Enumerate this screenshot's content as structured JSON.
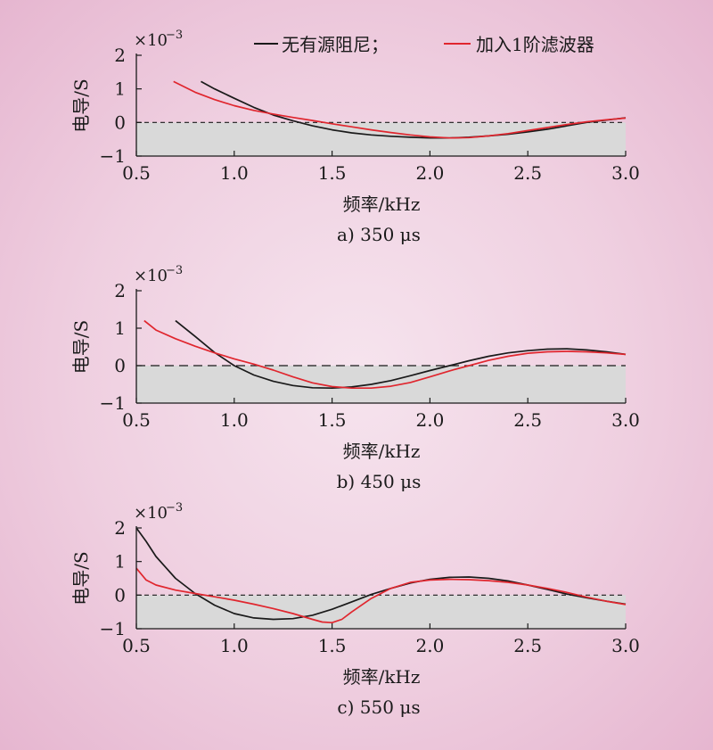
{
  "legend": {
    "label_a": "无有源阻尼；",
    "label_b": "加入1阶滤波器",
    "color_a": "#1a1a1a",
    "color_b": "#e0262e"
  },
  "chart_data": [
    {
      "type": "line",
      "caption": "a) 350 μs",
      "xlabel": "频率/kHz",
      "ylabel": "电导/S",
      "y_multiplier": "×10",
      "y_exponent": "−3",
      "xlim": [
        0.5,
        3.0
      ],
      "ylim": [
        -1,
        2
      ],
      "x_ticks": [
        "0.5",
        "1.0",
        "1.5",
        "2.0",
        "2.5",
        "3.0"
      ],
      "y_ticks": [
        "2",
        "1",
        "0",
        "−1"
      ],
      "shaded_negative_region": true,
      "zero_line": "dashed",
      "series": [
        {
          "name": "无有源阻尼；",
          "color": "#1a1a1a",
          "x": [
            0.83,
            0.9,
            1.0,
            1.1,
            1.2,
            1.3,
            1.4,
            1.5,
            1.6,
            1.7,
            1.8,
            1.9,
            2.0,
            2.1,
            2.2,
            2.3,
            2.4,
            2.5,
            2.6,
            2.7,
            2.8,
            2.9,
            3.0
          ],
          "y": [
            1.22,
            1.0,
            0.72,
            0.45,
            0.22,
            0.05,
            -0.1,
            -0.22,
            -0.31,
            -0.37,
            -0.41,
            -0.44,
            -0.46,
            -0.46,
            -0.44,
            -0.4,
            -0.35,
            -0.28,
            -0.2,
            -0.1,
            0.0,
            0.07,
            0.14
          ]
        },
        {
          "name": "加入1阶滤波器",
          "color": "#e0262e",
          "x": [
            0.69,
            0.8,
            0.9,
            1.0,
            1.1,
            1.2,
            1.3,
            1.4,
            1.5,
            1.6,
            1.7,
            1.8,
            1.9,
            2.0,
            2.1,
            2.2,
            2.3,
            2.4,
            2.5,
            2.6,
            2.7,
            2.8,
            2.9,
            3.0
          ],
          "y": [
            1.22,
            0.9,
            0.68,
            0.5,
            0.36,
            0.25,
            0.15,
            0.06,
            -0.04,
            -0.13,
            -0.22,
            -0.3,
            -0.37,
            -0.43,
            -0.46,
            -0.45,
            -0.4,
            -0.33,
            -0.24,
            -0.15,
            -0.06,
            0.02,
            0.08,
            0.13
          ]
        }
      ]
    },
    {
      "type": "line",
      "caption": "b) 450 μs",
      "xlabel": "频率/kHz",
      "ylabel": "电导/S",
      "y_multiplier": "×10",
      "y_exponent": "−3",
      "xlim": [
        0.5,
        3.0
      ],
      "ylim": [
        -1,
        2
      ],
      "x_ticks": [
        "0.5",
        "1.0",
        "1.5",
        "2.0",
        "2.5",
        "3.0"
      ],
      "y_ticks": [
        "2",
        "1",
        "0",
        "−1"
      ],
      "shaded_negative_region": true,
      "zero_line": "dashed",
      "series": [
        {
          "name": "无有源阻尼；",
          "color": "#1a1a1a",
          "x": [
            0.7,
            0.8,
            0.9,
            1.0,
            1.1,
            1.2,
            1.3,
            1.4,
            1.5,
            1.6,
            1.7,
            1.8,
            1.9,
            2.0,
            2.1,
            2.2,
            2.3,
            2.4,
            2.5,
            2.6,
            2.7,
            2.8,
            2.9,
            3.0
          ],
          "y": [
            1.2,
            0.78,
            0.35,
            0.0,
            -0.25,
            -0.42,
            -0.53,
            -0.59,
            -0.6,
            -0.57,
            -0.5,
            -0.4,
            -0.27,
            -0.13,
            0.0,
            0.13,
            0.25,
            0.34,
            0.4,
            0.44,
            0.45,
            0.42,
            0.37,
            0.3
          ]
        },
        {
          "name": "加入1阶滤波器",
          "color": "#e0262e",
          "x": [
            0.54,
            0.6,
            0.7,
            0.8,
            0.9,
            1.0,
            1.1,
            1.2,
            1.3,
            1.4,
            1.5,
            1.6,
            1.7,
            1.8,
            1.9,
            2.0,
            2.1,
            2.2,
            2.3,
            2.4,
            2.5,
            2.6,
            2.7,
            2.8,
            2.9,
            3.0
          ],
          "y": [
            1.2,
            0.95,
            0.72,
            0.52,
            0.34,
            0.18,
            0.04,
            -0.12,
            -0.3,
            -0.46,
            -0.56,
            -0.6,
            -0.6,
            -0.55,
            -0.45,
            -0.3,
            -0.14,
            0.0,
            0.14,
            0.25,
            0.33,
            0.37,
            0.38,
            0.37,
            0.34,
            0.3
          ]
        }
      ]
    },
    {
      "type": "line",
      "caption": "c) 550 μs",
      "xlabel": "频率/kHz",
      "ylabel": "电导/S",
      "y_multiplier": "×10",
      "y_exponent": "−3",
      "xlim": [
        0.5,
        3.0
      ],
      "ylim": [
        -1,
        2
      ],
      "x_ticks": [
        "0.5",
        "1.0",
        "1.5",
        "2.0",
        "2.5",
        "3.0"
      ],
      "y_ticks": [
        "2",
        "1",
        "0",
        "−1"
      ],
      "shaded_negative_region": true,
      "zero_line": "dashed",
      "series": [
        {
          "name": "无有源阻尼；",
          "color": "#1a1a1a",
          "x": [
            0.5,
            0.55,
            0.6,
            0.7,
            0.8,
            0.9,
            1.0,
            1.1,
            1.2,
            1.3,
            1.4,
            1.5,
            1.6,
            1.7,
            1.8,
            1.9,
            2.0,
            2.1,
            2.2,
            2.3,
            2.4,
            2.5,
            2.6,
            2.7,
            2.8,
            2.9,
            3.0
          ],
          "y": [
            2.0,
            1.6,
            1.15,
            0.5,
            0.05,
            -0.3,
            -0.55,
            -0.68,
            -0.72,
            -0.7,
            -0.6,
            -0.42,
            -0.2,
            0.02,
            0.2,
            0.36,
            0.47,
            0.53,
            0.54,
            0.5,
            0.42,
            0.3,
            0.17,
            0.03,
            -0.08,
            -0.18,
            -0.27
          ]
        },
        {
          "name": "加入1阶滤波器",
          "color": "#e0262e",
          "x": [
            0.5,
            0.55,
            0.6,
            0.7,
            0.8,
            0.9,
            1.0,
            1.1,
            1.2,
            1.3,
            1.4,
            1.45,
            1.5,
            1.55,
            1.6,
            1.7,
            1.8,
            1.9,
            2.0,
            2.1,
            2.2,
            2.3,
            2.4,
            2.5,
            2.6,
            2.7,
            2.8,
            2.9,
            3.0
          ],
          "y": [
            0.8,
            0.45,
            0.3,
            0.15,
            0.05,
            -0.05,
            -0.15,
            -0.27,
            -0.4,
            -0.55,
            -0.72,
            -0.8,
            -0.82,
            -0.72,
            -0.5,
            -0.1,
            0.2,
            0.38,
            0.45,
            0.47,
            0.46,
            0.43,
            0.38,
            0.3,
            0.2,
            0.08,
            -0.06,
            -0.18,
            -0.28
          ]
        }
      ]
    }
  ]
}
